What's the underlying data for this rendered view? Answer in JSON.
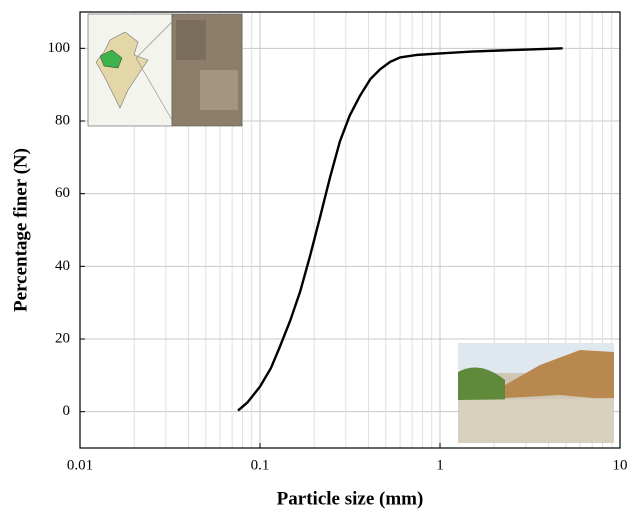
{
  "chart_data": {
    "type": "line",
    "x_label": "Particle size (mm)",
    "y_label": "Percentage finer (N)",
    "x_scale": "log",
    "grid": true,
    "minor_grid": true,
    "xlim": [
      0.01,
      10
    ],
    "xticks": [
      0.01,
      0.1,
      1,
      10
    ],
    "ylim": [
      -10,
      110
    ],
    "yticks": [
      0,
      20,
      40,
      60,
      80,
      100
    ],
    "series": [
      {
        "color": "#000000",
        "x": [
          0.0755,
          0.085,
          0.1,
          0.115,
          0.129,
          0.147,
          0.167,
          0.19,
          0.216,
          0.245,
          0.278,
          0.315,
          0.358,
          0.41,
          0.464,
          0.53,
          0.6,
          0.75,
          1,
          1.5,
          2.15,
          3.2,
          4.8
        ],
        "values": [
          0.3,
          2.5,
          6.9,
          12,
          17.9,
          25,
          33,
          43,
          53.7,
          64.5,
          74.4,
          81.5,
          86.8,
          91.5,
          94.2,
          96.3,
          97.5,
          98.2,
          98.6,
          99.1,
          99.4,
          99.7,
          100
        ]
      }
    ]
  }
}
